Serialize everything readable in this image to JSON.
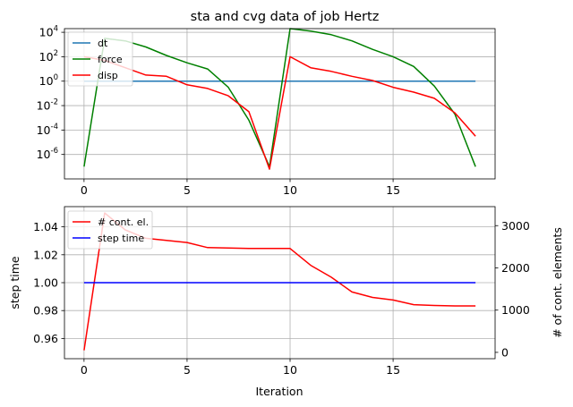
{
  "figure": {
    "title": "sta and cvg data of job Hertz"
  },
  "chart_data": [
    {
      "type": "line",
      "title": "sta and cvg data of job Hertz",
      "yscale": "log",
      "xlim": [
        -0.95,
        19.95
      ],
      "ylim_exp": [
        -8,
        4.3
      ],
      "xticks": [
        "0",
        "5",
        "10",
        "15"
      ],
      "xtick_values": [
        0,
        5,
        10,
        15
      ],
      "yticks": [
        "10^-6",
        "10^-4",
        "10^-2",
        "10^0",
        "10^2",
        "10^4"
      ],
      "ytick_exps": [
        -6,
        -4,
        -2,
        0,
        2,
        4
      ],
      "grid": true,
      "legend_position": "upper-left",
      "x": [
        0,
        1,
        2,
        3,
        4,
        5,
        6,
        7,
        8,
        9,
        10,
        11,
        12,
        13,
        14,
        15,
        16,
        17,
        18,
        19
      ],
      "series": [
        {
          "name": "dt",
          "color": "#1f77b4",
          "exponents": [
            0,
            0,
            0,
            0,
            0,
            0,
            0,
            0,
            0,
            0,
            0,
            0,
            0,
            0,
            0,
            0,
            0,
            0,
            0,
            0
          ]
        },
        {
          "name": "force",
          "color": "#008000",
          "exponents": [
            -7,
            3.5,
            3.3,
            2.8,
            2.1,
            1.5,
            1.0,
            -0.5,
            -3.2,
            -7,
            4.3,
            4.1,
            3.8,
            3.3,
            2.6,
            2.0,
            1.2,
            -0.4,
            -2.7,
            -7
          ]
        },
        {
          "name": "disp",
          "color": "#ff0000",
          "exponents": [
            2.0,
            1.7,
            1.1,
            0.5,
            0.4,
            -0.3,
            -0.6,
            -1.2,
            -2.5,
            -7.2,
            2.0,
            1.1,
            0.8,
            0.4,
            0.05,
            -0.5,
            -0.9,
            -1.4,
            -2.6,
            -4.5
          ]
        }
      ]
    },
    {
      "type": "line",
      "xlabel": "Iteration",
      "ylabel": "step time",
      "ylabel_right": "# of cont. elements",
      "xlim": [
        -0.95,
        19.95
      ],
      "ylim": [
        0.9455,
        1.0545
      ],
      "ylim_right": [
        -150,
        3450
      ],
      "xticks": [
        "0",
        "5",
        "10",
        "15"
      ],
      "xtick_values": [
        0,
        5,
        10,
        15
      ],
      "yticks": [
        "0.96",
        "0.98",
        "1.00",
        "1.02",
        "1.04"
      ],
      "ytick_values": [
        0.96,
        0.98,
        1.0,
        1.02,
        1.04
      ],
      "yticks_right": [
        "0",
        "1000",
        "2000",
        "3000"
      ],
      "ytick_values_right": [
        0,
        1000,
        2000,
        3000
      ],
      "grid": true,
      "legend_position": "upper-left",
      "x": [
        0,
        1,
        2,
        3,
        4,
        5,
        6,
        7,
        8,
        9,
        10,
        11,
        12,
        13,
        14,
        15,
        16,
        17,
        18,
        19
      ],
      "series": [
        {
          "name": "# cont. el.",
          "color": "#ff0000",
          "axis": "right",
          "values": [
            50,
            3300,
            2900,
            2700,
            2650,
            2600,
            2480,
            2470,
            2460,
            2460,
            2460,
            2060,
            1780,
            1430,
            1300,
            1240,
            1130,
            1110,
            1100,
            1100
          ]
        },
        {
          "name": "step time",
          "color": "#0000ff",
          "axis": "left",
          "values": [
            1.0,
            1.0,
            1.0,
            1.0,
            1.0,
            1.0,
            1.0,
            1.0,
            1.0,
            1.0,
            1.0,
            1.0,
            1.0,
            1.0,
            1.0,
            1.0,
            1.0,
            1.0,
            1.0,
            1.0
          ]
        }
      ]
    }
  ]
}
